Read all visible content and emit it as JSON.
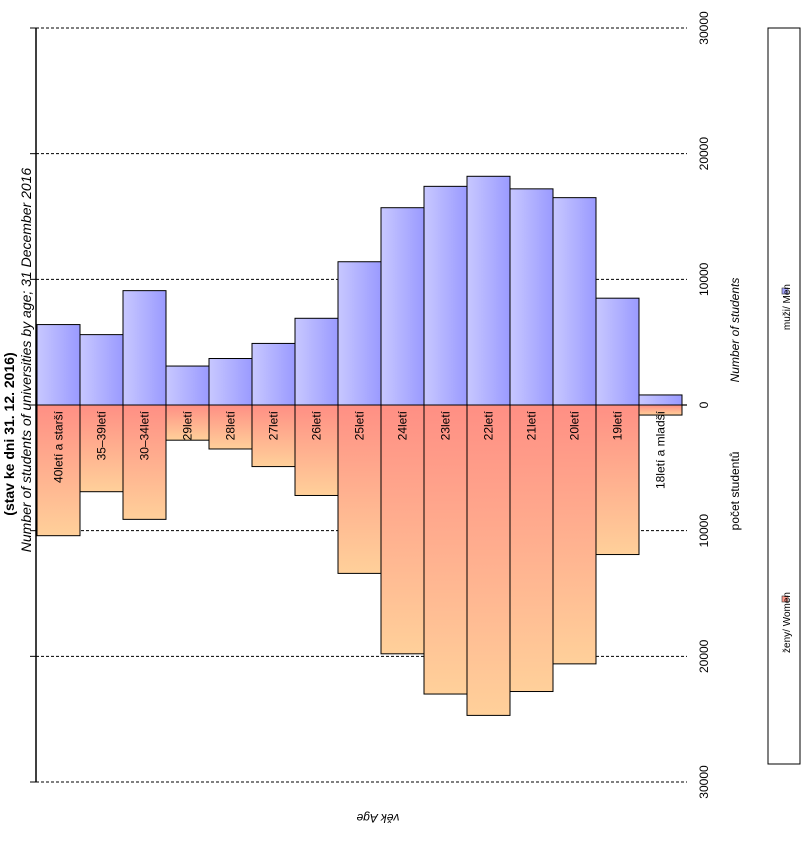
{
  "header": {
    "title_line": "(stav ke dni 31. 12. 2016)",
    "subtitle_en": "Number of students of universities by age; 31 December 2016"
  },
  "axis": {
    "value_label_cz": "počet studentů",
    "value_label_en": "Number of students",
    "category_label": "věk  Age"
  },
  "legend": {
    "women_label": "ženy/ Women",
    "men_label": "muži/ Men"
  },
  "colors": {
    "men": "#a6a6ff",
    "women": "#ff9a8c",
    "border": "#000000",
    "grid": "#000000"
  },
  "chart_data": {
    "type": "bar",
    "title": "(stav ke dni 31. 12. 2016)",
    "subtitle": "Number of students of universities by age; 31 December 2016",
    "categories": [
      "40letí a starší",
      "35–39letí",
      "30–34letí",
      "29letí",
      "28letí",
      "27letí",
      "26letí",
      "25letí",
      "24letí",
      "23letí",
      "22letí",
      "21letí",
      "20letí",
      "19letí",
      "18letí a mladší"
    ],
    "series": [
      {
        "name": "muži/ Men",
        "values": [
          6400,
          5600,
          9100,
          3100,
          3700,
          4900,
          6900,
          11400,
          15700,
          17400,
          18200,
          17200,
          16500,
          8500,
          800
        ]
      },
      {
        "name": "ženy/ Women",
        "values": [
          10400,
          6900,
          9100,
          2800,
          3500,
          4900,
          7200,
          13400,
          19800,
          23000,
          24700,
          22800,
          20600,
          11900,
          800
        ]
      }
    ],
    "tick_labels": [
      "30000",
      "20000",
      "10000",
      "0",
      "10000",
      "20000",
      "30000"
    ],
    "vlim": [
      -30000,
      30000
    ],
    "xlabel": "věk  Age",
    "ylabel": "počet studentů   Number of students",
    "grid": true,
    "legend": "right"
  }
}
